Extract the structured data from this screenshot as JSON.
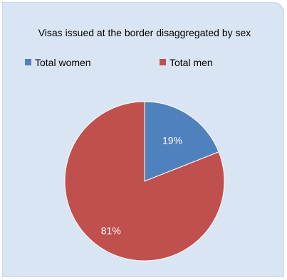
{
  "chart_data": {
    "type": "pie",
    "title": "Visas issued at the border disaggregated by sex",
    "categories": [
      "Total women",
      "Total men"
    ],
    "values": [
      19,
      81
    ],
    "labels": [
      "19%",
      "81%"
    ],
    "colors": [
      "#4f81bd",
      "#c0504d"
    ],
    "legend_position": "top",
    "background": "#dae5f4",
    "border": "#c5d4e9"
  }
}
